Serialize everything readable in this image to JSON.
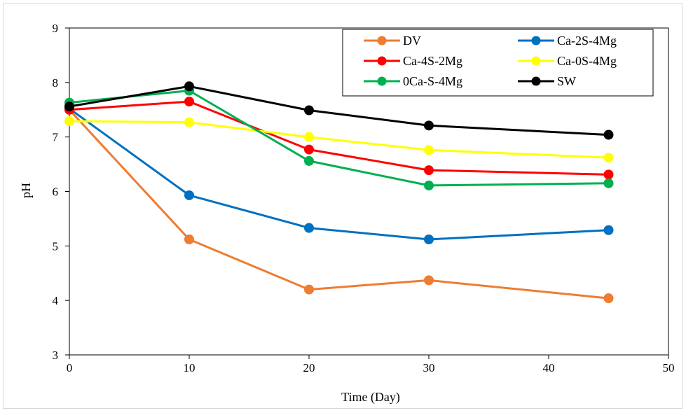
{
  "chart_data": {
    "type": "line",
    "title": "",
    "xlabel": "Time (Day)",
    "ylabel": "pH",
    "xlim": [
      0,
      50
    ],
    "ylim": [
      3,
      9
    ],
    "x_ticks": [
      0,
      10,
      20,
      30,
      40,
      50
    ],
    "y_ticks": [
      3,
      4,
      5,
      6,
      7,
      8,
      9
    ],
    "grid": false,
    "legend_position": "top-right",
    "x": [
      0,
      10,
      20,
      30,
      45
    ],
    "series": [
      {
        "name": "DV",
        "color": "#ED7D31",
        "values": [
          7.5,
          5.12,
          4.2,
          4.37,
          4.04
        ]
      },
      {
        "name": "Ca-2S-4Mg",
        "color": "#0070C0",
        "values": [
          7.52,
          5.93,
          5.33,
          5.12,
          5.29
        ]
      },
      {
        "name": "Ca-4S-2Mg",
        "color": "#FF0000",
        "values": [
          7.5,
          7.65,
          6.77,
          6.39,
          6.31
        ]
      },
      {
        "name": "Ca-0S-4Mg",
        "color": "#FFFF00",
        "values": [
          7.29,
          7.27,
          7.0,
          6.76,
          6.62
        ]
      },
      {
        "name": "0Ca-S-4Mg",
        "color": "#00B050",
        "values": [
          7.63,
          7.85,
          6.56,
          6.11,
          6.15
        ]
      },
      {
        "name": "SW",
        "color": "#000000",
        "values": [
          7.56,
          7.93,
          7.49,
          7.21,
          7.04
        ]
      }
    ]
  }
}
